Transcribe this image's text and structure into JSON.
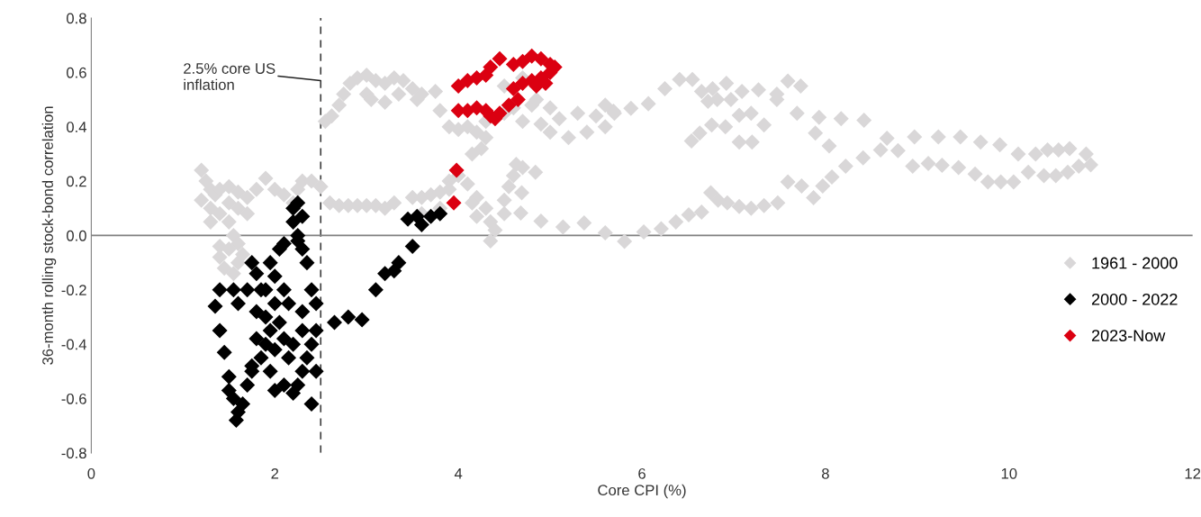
{
  "chart_data": {
    "type": "scatter",
    "xlabel": "Core CPI (%)",
    "ylabel": "36-month rolling stock-bond correlation",
    "xlim": [
      0,
      12
    ],
    "xticks": [
      0,
      2,
      4,
      6,
      8,
      10,
      12
    ],
    "ylim": [
      -0.8,
      0.8
    ],
    "yticks": [
      {
        "value": -0.8,
        "label": "-0.8"
      },
      {
        "value": -0.6,
        "label": "-0.6"
      },
      {
        "value": -0.4,
        "label": "-0.4"
      },
      {
        "value": -0.2,
        "label": "-0.2"
      },
      {
        "value": 0,
        "label": "0.0"
      },
      {
        "value": 0.2,
        "label": "0.2"
      },
      {
        "value": 0.4,
        "label": "0.4"
      },
      {
        "value": 0.6,
        "label": "0.6"
      },
      {
        "value": 0.8,
        "label": "0.8"
      }
    ],
    "grid": false,
    "legend": "right",
    "marker": "diamond",
    "ref_lines": [
      {
        "axis": "x",
        "value": 2.5,
        "label": "2.5% core US\ninflation",
        "color": "#404040",
        "line_style": "dashed"
      },
      {
        "axis": "y",
        "value": 0,
        "color": "#808080",
        "line_style": "solid"
      }
    ],
    "series": [
      {
        "name": "1961 - 2000",
        "color": "#d9d7d8",
        "x": [
          8.97,
          9.23,
          9.47,
          9.69,
          9.9,
          10.1,
          10.29,
          10.42,
          10.54,
          10.66,
          10.84,
          8.95,
          9.12,
          9.27,
          9.45,
          9.63,
          9.77,
          9.91,
          10.05,
          10.21,
          10.38,
          10.51,
          10.64,
          10.76,
          10.89,
          8.67,
          8.6,
          8.79,
          8.41,
          8.22,
          8.07,
          7.97,
          7.87,
          7.74,
          7.59,
          7.48,
          7.33,
          7.19,
          7.06,
          6.93,
          6.83,
          6.75,
          6.65,
          6.51,
          6.37,
          6.21,
          6.02,
          5.81,
          5.6,
          5.37,
          5.14,
          4.9,
          4.68,
          4.69,
          4.84,
          4.63,
          8.42,
          8.17,
          7.93,
          7.89,
          8.04,
          7.69,
          7.73,
          7.59,
          7.47,
          7.47,
          7.33,
          7.27,
          7.2,
          7.06,
          7.19,
          7.06,
          7.09,
          6.92,
          6.97,
          6.82,
          6.72,
          6.65,
          6.77,
          6.55,
          6.41,
          6.25,
          6.91,
          6.76,
          6.63,
          6.54,
          6.07,
          5.88,
          5.69,
          2.55,
          2.62,
          2.7,
          2.75,
          2.82,
          2.9,
          3.0,
          3.1,
          3.2,
          3.3,
          3.4,
          3.5,
          3.6,
          3.75,
          3.55,
          3.0,
          3.05,
          3.2,
          3.35,
          3.8,
          3.9,
          4.0,
          4.1,
          4.2,
          4.3,
          4.25,
          4.15,
          4.3,
          4.5,
          4.6,
          4.7,
          4.9,
          5.1,
          5.3,
          5.5,
          5.7,
          5.6,
          5.0,
          5.2,
          5.4,
          5.6,
          4.8,
          5.0,
          4.5,
          4.7,
          4.85,
          2.3,
          2.4,
          2.5,
          2.6,
          2.7,
          2.8,
          2.9,
          3.0,
          3.1,
          3.2,
          3.3,
          3.5,
          3.6,
          3.7,
          3.8,
          3.9,
          4.0,
          4.1,
          4.2,
          4.3,
          4.35,
          4.4,
          4.35,
          4.2,
          4.15,
          4.5,
          4.55,
          4.6,
          4.7,
          4.5,
          3.6,
          3.8,
          3.9,
          1.2,
          1.25,
          1.3,
          1.35,
          1.4,
          1.5,
          1.6,
          1.7,
          1.8,
          1.9,
          2.0,
          2.1,
          2.2,
          2.25,
          1.2,
          1.3,
          1.4,
          1.5,
          1.55,
          1.6,
          1.5,
          1.4,
          1.4,
          1.45,
          1.55,
          1.6,
          1.65,
          1.3,
          1.5,
          1.6,
          1.7
        ],
        "values": [
          0.363,
          0.363,
          0.363,
          0.344,
          0.334,
          0.3,
          0.3,
          0.315,
          0.315,
          0.32,
          0.3,
          0.255,
          0.265,
          0.258,
          0.25,
          0.226,
          0.197,
          0.197,
          0.197,
          0.233,
          0.22,
          0.22,
          0.233,
          0.255,
          0.26,
          0.358,
          0.315,
          0.312,
          0.286,
          0.255,
          0.215,
          0.182,
          0.139,
          0.182,
          0.197,
          0.12,
          0.11,
          0.1,
          0.107,
          0.12,
          0.13,
          0.157,
          0.086,
          0.076,
          0.05,
          0.025,
          0.013,
          -0.022,
          0.01,
          0.046,
          0.031,
          0.053,
          0.083,
          0.157,
          0.233,
          0.262,
          0.424,
          0.43,
          0.435,
          0.377,
          0.33,
          0.45,
          0.55,
          0.568,
          0.52,
          0.5,
          0.407,
          0.536,
          0.344,
          0.344,
          0.45,
          0.442,
          0.53,
          0.56,
          0.5,
          0.5,
          0.494,
          0.53,
          0.54,
          0.574,
          0.574,
          0.54,
          0.4,
          0.407,
          0.377,
          0.348,
          0.485,
          0.468,
          0.457,
          0.42,
          0.44,
          0.48,
          0.52,
          0.56,
          0.58,
          0.59,
          0.57,
          0.56,
          0.58,
          0.57,
          0.54,
          0.52,
          0.53,
          0.5,
          0.52,
          0.5,
          0.49,
          0.52,
          0.46,
          0.4,
          0.39,
          0.4,
          0.38,
          0.36,
          0.32,
          0.3,
          0.42,
          0.45,
          0.47,
          0.42,
          0.41,
          0.43,
          0.45,
          0.44,
          0.45,
          0.48,
          0.38,
          0.36,
          0.38,
          0.4,
          0.48,
          0.47,
          0.55,
          0.58,
          0.5,
          0.2,
          0.2,
          0.18,
          0.12,
          0.11,
          0.11,
          0.11,
          0.11,
          0.11,
          0.1,
          0.12,
          0.14,
          0.14,
          0.15,
          0.16,
          0.2,
          0.22,
          0.19,
          0.14,
          0.1,
          0.05,
          0.02,
          -0.02,
          0.07,
          0.12,
          0.13,
          0.18,
          0.22,
          0.25,
          0.08,
          0.08,
          0.1,
          0.17,
          0.24,
          0.2,
          0.17,
          0.15,
          0.17,
          0.18,
          0.16,
          0.14,
          0.17,
          0.21,
          0.17,
          0.15,
          0.12,
          0.17,
          0.13,
          0.1,
          0.08,
          0.05,
          0.0,
          -0.03,
          -0.05,
          -0.04,
          -0.08,
          -0.12,
          -0.14,
          -0.1,
          -0.07,
          0.05,
          0.12,
          0.1,
          0.08
        ]
      },
      {
        "name": "2000 - 2022",
        "color": "#000000",
        "x": [
          2.65,
          2.8,
          2.95,
          3.1,
          3.2,
          3.3,
          3.35,
          3.5,
          3.45,
          3.6,
          3.7,
          3.8,
          3.55,
          1.4,
          1.35,
          1.4,
          1.45,
          1.5,
          1.5,
          1.55,
          1.6,
          1.58,
          1.65,
          1.55,
          1.6,
          1.7,
          1.75,
          1.8,
          1.85,
          1.9,
          1.9,
          1.85,
          1.75,
          1.7,
          1.75,
          1.8,
          1.8,
          1.95,
          2.0,
          2.1,
          2.2,
          2.25,
          2.3,
          2.35,
          2.4,
          2.45,
          2.4,
          2.45,
          2.45,
          2.4,
          2.35,
          2.3,
          2.25,
          2.2,
          2.2,
          2.25,
          2.3,
          2.25,
          2.1,
          2.05,
          2.0,
          2.0,
          2.05,
          2.1,
          2.15,
          2.1,
          2.15,
          2.3,
          2.3,
          2.2,
          1.95,
          2.0,
          1.95,
          1.9
        ],
        "values": [
          -0.32,
          -0.3,
          -0.31,
          -0.2,
          -0.14,
          -0.13,
          -0.1,
          -0.04,
          0.06,
          0.04,
          0.07,
          0.08,
          0.07,
          -0.2,
          -0.26,
          -0.35,
          -0.43,
          -0.52,
          -0.57,
          -0.6,
          -0.65,
          -0.68,
          -0.62,
          -0.2,
          -0.25,
          -0.2,
          -0.1,
          -0.14,
          -0.2,
          -0.3,
          -0.4,
          -0.45,
          -0.5,
          -0.55,
          -0.48,
          -0.38,
          -0.28,
          -0.5,
          -0.57,
          -0.55,
          -0.58,
          -0.55,
          -0.5,
          -0.45,
          -0.4,
          -0.35,
          -0.62,
          -0.5,
          -0.25,
          -0.2,
          -0.1,
          -0.05,
          0.0,
          0.05,
          0.1,
          0.12,
          0.07,
          -0.02,
          -0.03,
          -0.05,
          -0.15,
          -0.25,
          -0.32,
          -0.38,
          -0.45,
          -0.2,
          -0.25,
          -0.28,
          -0.35,
          -0.4,
          -0.35,
          -0.42,
          -0.1,
          -0.2
        ]
      },
      {
        "name": "2023-Now",
        "color": "#db0011",
        "x": [
          3.95,
          3.98,
          4.0,
          4.1,
          4.2,
          4.3,
          4.35,
          4.4,
          4.45,
          4.55,
          4.65,
          4.6,
          4.7,
          4.8,
          4.9,
          5.0,
          4.95,
          4.85,
          4.0,
          4.1,
          4.2,
          4.3,
          4.35,
          4.45,
          4.6,
          4.7,
          4.8,
          4.9,
          5.0,
          5.05
        ],
        "values": [
          0.12,
          0.24,
          0.46,
          0.46,
          0.47,
          0.46,
          0.44,
          0.43,
          0.45,
          0.48,
          0.5,
          0.54,
          0.56,
          0.57,
          0.58,
          0.6,
          0.56,
          0.55,
          0.55,
          0.57,
          0.58,
          0.59,
          0.62,
          0.65,
          0.63,
          0.64,
          0.66,
          0.65,
          0.63,
          0.62
        ]
      }
    ]
  }
}
